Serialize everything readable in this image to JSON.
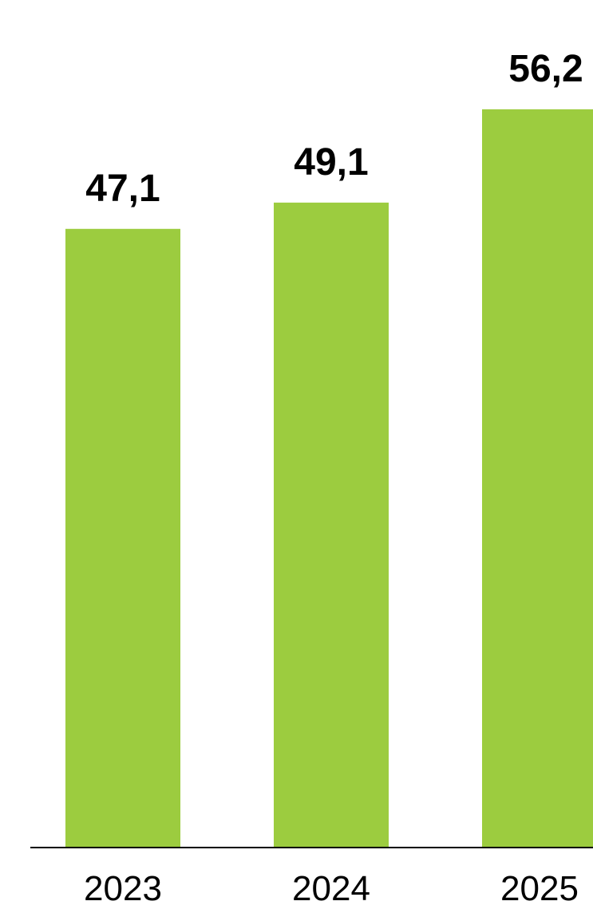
{
  "chart_data": {
    "type": "bar",
    "categories": [
      "2023",
      "2024",
      "2025"
    ],
    "values": [
      47.1,
      49.1,
      56.2
    ],
    "value_labels": [
      "47,1",
      "49,1",
      "56,2"
    ],
    "title": "",
    "xlabel": "",
    "ylabel": "",
    "ylim": [
      0,
      56.2
    ],
    "grid": false,
    "legend": "none",
    "bar_color": "#9ccc3f",
    "axis_color": "#000000"
  }
}
